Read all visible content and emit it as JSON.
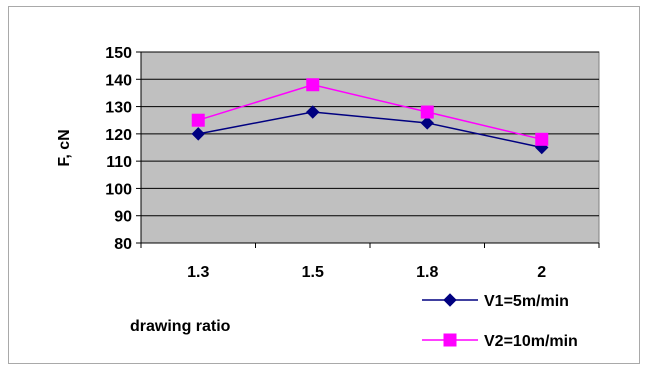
{
  "chart_data": {
    "type": "line",
    "categories": [
      "1.3",
      "1.5",
      "1.8",
      "2"
    ],
    "series": [
      {
        "name": "V1=5m/min",
        "values": [
          120,
          128,
          124,
          115
        ],
        "color": "#000080",
        "marker": "diamond"
      },
      {
        "name": "V2=10m/min",
        "values": [
          125,
          138,
          128,
          118
        ],
        "color": "#ff00ff",
        "marker": "square"
      }
    ],
    "title": "",
    "xlabel": "drawing ratio",
    "ylabel": "F, cN",
    "ylim": [
      80,
      150
    ],
    "ytick_step": 10,
    "grid": true,
    "plot_background": "#c0c0c0",
    "legend_placement": "bottom-right"
  }
}
